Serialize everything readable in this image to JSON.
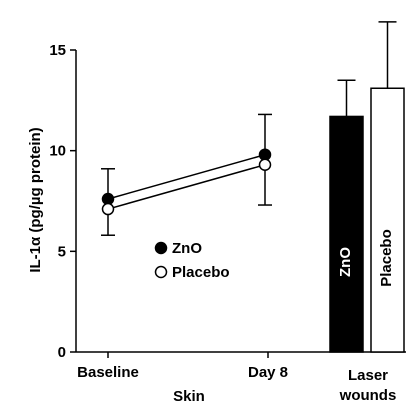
{
  "chart_data": [
    {
      "type": "line",
      "group_label": "Skin",
      "categories": [
        "Baseline",
        "Day 8"
      ],
      "ylabel": "IL-1α (pg/µg protein)",
      "ylim": [
        0,
        15
      ],
      "yticks": [
        "0",
        "5",
        "10",
        "15"
      ],
      "grid": false,
      "legend_position": "center-left",
      "series": [
        {
          "name": "ZnO",
          "values": [
            7.6,
            9.8
          ],
          "error": [
            1.5,
            2.0
          ],
          "marker": "filled-circle",
          "color": "#000000"
        },
        {
          "name": "Placebo",
          "values": [
            7.1,
            9.3
          ],
          "error": [
            1.3,
            2.0
          ],
          "marker": "open-circle",
          "color": "#ffffff"
        }
      ]
    },
    {
      "type": "bar",
      "group_label": "Laser wounds",
      "categories": [
        "ZnO",
        "Placebo"
      ],
      "values": [
        11.7,
        13.1
      ],
      "error": [
        1.8,
        3.3
      ],
      "colors": [
        "#000000",
        "#ffffff"
      ],
      "ylim": [
        0,
        15
      ]
    }
  ]
}
